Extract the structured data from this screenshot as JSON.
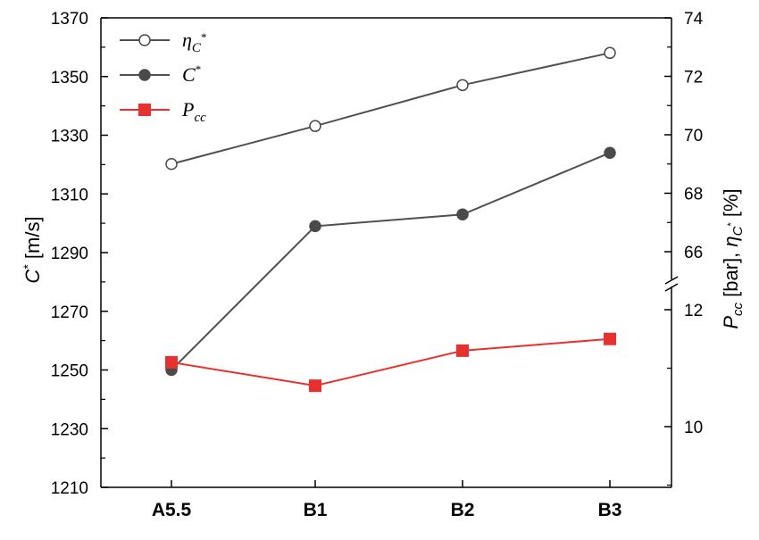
{
  "chart_data": {
    "type": "line",
    "categories": [
      "A5.5",
      "B1",
      "B2",
      "B3"
    ],
    "left_axis": {
      "label_main": "C",
      "label_sup": "*",
      "label_unit": " [m/s]",
      "ylim": [
        1210,
        1370
      ],
      "ticks": [
        "1210",
        "1230",
        "1250",
        "1270",
        "1290",
        "1310",
        "1330",
        "1350",
        "1370"
      ]
    },
    "right_axis": {
      "upper_segment": {
        "ylim": [
          64,
          74
        ],
        "ticks": [
          "66",
          "68",
          "70",
          "72",
          "74"
        ]
      },
      "lower_segment": {
        "ylim": [
          8,
          13
        ],
        "ticks": [
          "10",
          "12"
        ]
      },
      "label_pcc": "P",
      "label_pcc_sub": "cc",
      "label_pcc_unit": " [bar],  ",
      "label_eta": "η",
      "label_eta_sub": "C",
      "label_eta_sup": "*",
      "label_eta_unit": " [%]"
    },
    "series": [
      {
        "name": "ηC*",
        "name_main": "η",
        "name_sub": "C",
        "name_sup": "*",
        "axis": "right-upper",
        "color": "#505050",
        "marker": "circle-open",
        "values": [
          69.0,
          70.3,
          71.7,
          72.8
        ]
      },
      {
        "name": "C*",
        "name_main": "C",
        "name_sup": "*",
        "axis": "left",
        "color": "#505050",
        "marker": "circle-filled",
        "values": [
          1250,
          1299,
          1303,
          1324
        ]
      },
      {
        "name": "Pcc",
        "name_main": "P",
        "name_sub": "cc",
        "axis": "right-lower",
        "color": "#e8302e",
        "marker": "square",
        "values": [
          11.1,
          10.7,
          11.3,
          11.5
        ]
      }
    ],
    "legend_position": "top-left",
    "grid": false
  }
}
